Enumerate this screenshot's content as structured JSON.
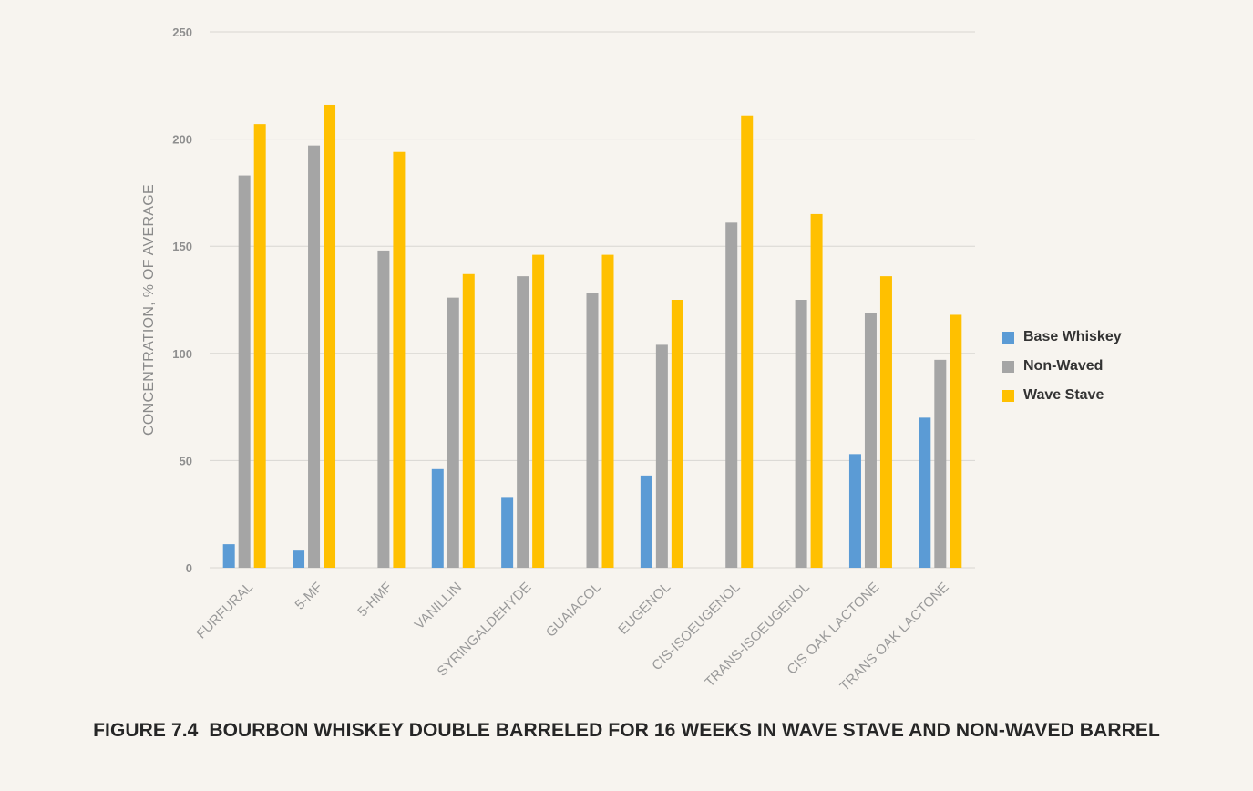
{
  "chart_data": {
    "type": "bar",
    "ylabel": "CONCENTRATION, % OF AVERAGE",
    "xlabel": "",
    "ylim": [
      0,
      250
    ],
    "yticks": [
      0,
      50,
      100,
      150,
      200,
      250
    ],
    "grid": true,
    "legend_position": "right",
    "categories": [
      "FURFURAL",
      "5-MF",
      "5-HMF",
      "VANILLIN",
      "SYRINGALDEHYDE",
      "GUAIACOL",
      "EUGENOL",
      "CIS-ISOEUGENOL",
      "TRANS-ISOEUGENOL",
      "CIS OAK LACTONE",
      "TRANS OAK LACTONE"
    ],
    "series": [
      {
        "name": "Base Whiskey",
        "color": "#5b9bd5",
        "values": [
          11,
          8,
          0,
          46,
          33,
          0,
          43,
          0,
          0,
          53,
          70
        ]
      },
      {
        "name": "Non-Waved",
        "color": "#a5a5a5",
        "values": [
          183,
          197,
          148,
          126,
          136,
          128,
          104,
          161,
          125,
          119,
          97
        ]
      },
      {
        "name": "Wave Stave",
        "color": "#ffc000",
        "values": [
          207,
          216,
          194,
          137,
          146,
          146,
          125,
          211,
          165,
          136,
          118
        ]
      }
    ]
  },
  "caption": "FIGURE 7.4  BOURBON WHISKEY DOUBLE BARRELED FOR 16 WEEKS IN WAVE STAVE AND NON-WAVED BARREL"
}
